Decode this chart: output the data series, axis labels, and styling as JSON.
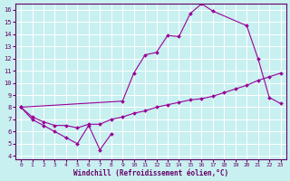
{
  "xlabel": "Windchill (Refroidissement éolien,°C)",
  "background_color": "#c8f0f0",
  "line_color": "#990099",
  "xlim": [
    -0.5,
    23.5
  ],
  "ylim": [
    3.7,
    16.5
  ],
  "xticks": [
    0,
    1,
    2,
    3,
    4,
    5,
    6,
    7,
    8,
    9,
    10,
    11,
    12,
    13,
    14,
    15,
    16,
    17,
    18,
    19,
    20,
    21,
    22,
    23
  ],
  "yticks": [
    4,
    5,
    6,
    7,
    8,
    9,
    10,
    11,
    12,
    13,
    14,
    15,
    16
  ],
  "series": [
    {
      "x": [
        0,
        1,
        2,
        3,
        4,
        5,
        6,
        7,
        8
      ],
      "y": [
        8.0,
        7.0,
        6.5,
        6.0,
        5.5,
        5.0,
        6.5,
        4.5,
        5.8
      ]
    },
    {
      "x": [
        0,
        9,
        10,
        11,
        12,
        13,
        14,
        15,
        16,
        17,
        20,
        21,
        22,
        23
      ],
      "y": [
        8.0,
        8.5,
        10.8,
        12.3,
        12.5,
        13.9,
        13.8,
        15.7,
        16.5,
        15.9,
        14.7,
        12.0,
        8.8,
        8.3
      ]
    },
    {
      "x": [
        0,
        1,
        2,
        3,
        4,
        5,
        6,
        7,
        8,
        9,
        10,
        11,
        12,
        13,
        14,
        15,
        16,
        17,
        18,
        19,
        20,
        21,
        22,
        23
      ],
      "y": [
        8.0,
        7.2,
        6.8,
        6.5,
        6.5,
        6.3,
        6.6,
        6.6,
        7.0,
        7.2,
        7.5,
        7.7,
        8.0,
        8.2,
        8.4,
        8.6,
        8.7,
        8.9,
        9.2,
        9.5,
        9.8,
        10.2,
        10.5,
        10.8
      ]
    }
  ]
}
